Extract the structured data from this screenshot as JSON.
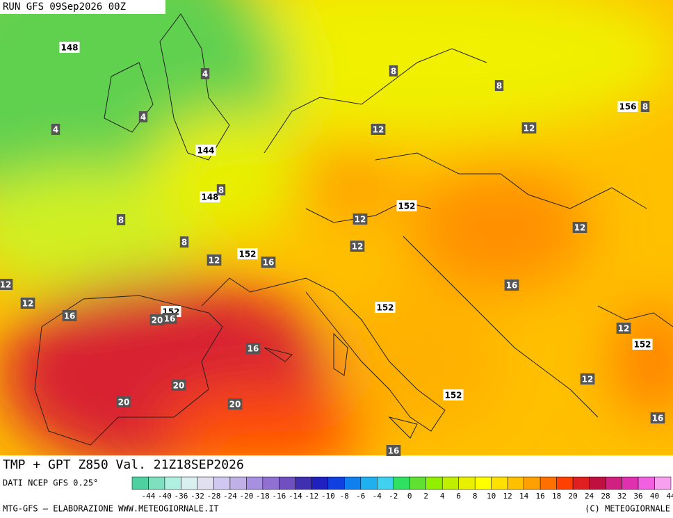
{
  "header": {
    "run": "RUN GFS 09Sep2026 00Z",
    "title": "TMP + GPT Z850 Val. 21Z18SEP2026"
  },
  "map": {
    "geopotential_labels": [
      148,
      144,
      148,
      156,
      152,
      152,
      152,
      152,
      152,
      152
    ],
    "temperature_labels": [
      4,
      4,
      4,
      8,
      8,
      8,
      8,
      8,
      8,
      12,
      12,
      12,
      12,
      12,
      12,
      16,
      12,
      12,
      16,
      20,
      16,
      16,
      12,
      16,
      12,
      20,
      20,
      20,
      16,
      16
    ]
  },
  "legend": {
    "source": "DATI NCEP GFS 0.25°",
    "ticks": [
      -44,
      -40,
      -36,
      -32,
      -28,
      -24,
      -20,
      -18,
      -16,
      -14,
      -12,
      -10,
      -8,
      -6,
      -4,
      -2,
      0,
      2,
      4,
      6,
      8,
      10,
      12,
      14,
      16,
      18,
      20,
      24,
      28,
      32,
      36,
      40,
      44
    ],
    "colors": [
      "#4fd0a0",
      "#7fe0c0",
      "#b0f0e0",
      "#d8f0f0",
      "#e0e0f0",
      "#d0c8f0",
      "#c0b0e8",
      "#a890e0",
      "#9070d0",
      "#7050c0",
      "#4030b0",
      "#2020c0",
      "#1040e0",
      "#1080f0",
      "#20b0f0",
      "#40d0f0",
      "#30e060",
      "#60e030",
      "#90f000",
      "#c0f000",
      "#e8f000",
      "#ffff00",
      "#ffe000",
      "#ffc000",
      "#ffa000",
      "#ff7000",
      "#ff4000",
      "#e02020",
      "#c01040",
      "#d02080",
      "#e030b0",
      "#f060e0",
      "#f8a0f0"
    ]
  },
  "footer": {
    "left": "MTG-GFS – ELABORAZIONE WWW.METEOGIORNALE.IT",
    "right": "(C) METEOGIORNALE"
  }
}
